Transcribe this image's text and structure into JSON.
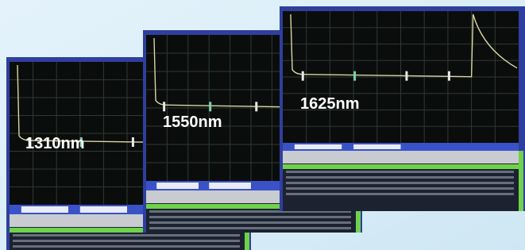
{
  "panels": [
    {
      "label": "1310nm"
    },
    {
      "label": "1550nm"
    },
    {
      "label": "1625nm"
    }
  ]
}
